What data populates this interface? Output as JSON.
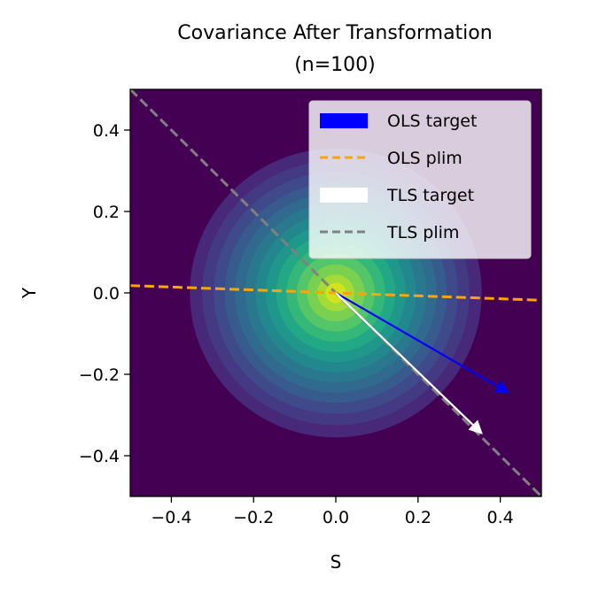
{
  "chart_data": {
    "type": "contour",
    "title_lines": [
      "Covariance After Transformation",
      "(n=100)"
    ],
    "xlabel": "S",
    "ylabel": "Y",
    "xlim": [
      -0.5,
      0.5
    ],
    "ylim": [
      -0.5,
      0.5
    ],
    "xticks": [
      {
        "value": -0.4,
        "label": "−0.4"
      },
      {
        "value": -0.2,
        "label": "−0.2"
      },
      {
        "value": 0.0,
        "label": "0.0"
      },
      {
        "value": 0.2,
        "label": "0.2"
      },
      {
        "value": 0.4,
        "label": "0.4"
      }
    ],
    "yticks": [
      {
        "value": 0.4,
        "label": "0.4"
      },
      {
        "value": 0.2,
        "label": "0.2"
      },
      {
        "value": 0.0,
        "label": "0.0"
      },
      {
        "value": -0.2,
        "label": "−0.2"
      },
      {
        "value": -0.4,
        "label": "−0.4"
      }
    ],
    "density": {
      "center": [
        0.0,
        0.0
      ],
      "level_radii": [
        0.355,
        0.325,
        0.297,
        0.27,
        0.245,
        0.22,
        0.195,
        0.17,
        0.145,
        0.12,
        0.095,
        0.07,
        0.045,
        0.025
      ],
      "level_colors": [
        "#481668",
        "#482879",
        "#443a83",
        "#3e4a89",
        "#375b8d",
        "#306a8e",
        "#2a788e",
        "#23888e",
        "#1f988b",
        "#22a884",
        "#35b779",
        "#54c568",
        "#7ad151",
        "#a5db36",
        "#d2e21b",
        "#fde725"
      ],
      "background_color": "#440154"
    },
    "ols_target": {
      "name": "OLS target",
      "from": [
        0.0,
        0.0
      ],
      "to": [
        0.42,
        -0.245
      ],
      "color": "#0000ff"
    },
    "ols_plim": {
      "name": "OLS plim",
      "x": [
        -0.5,
        0.5
      ],
      "y": [
        0.018,
        -0.018
      ],
      "color": "#ffa500",
      "dash": "dashed"
    },
    "tls_target": {
      "name": "TLS target",
      "from": [
        0.0,
        0.0
      ],
      "to": [
        0.355,
        -0.345
      ],
      "color": "#ffffff"
    },
    "tls_plim": {
      "name": "TLS plim",
      "x": [
        -0.5,
        0.5
      ],
      "y": [
        0.5,
        -0.5
      ],
      "color": "#808080",
      "dash": "dashed"
    },
    "legend": {
      "placement": "upper right",
      "entries": [
        {
          "label": "OLS target",
          "kind": "patch",
          "color": "#0000ff"
        },
        {
          "label": "OLS plim",
          "kind": "dashed-line",
          "color": "#ffa500"
        },
        {
          "label": "TLS target",
          "kind": "patch",
          "color": "#ffffff"
        },
        {
          "label": "TLS plim",
          "kind": "dashed-line",
          "color": "#808080"
        }
      ]
    }
  }
}
